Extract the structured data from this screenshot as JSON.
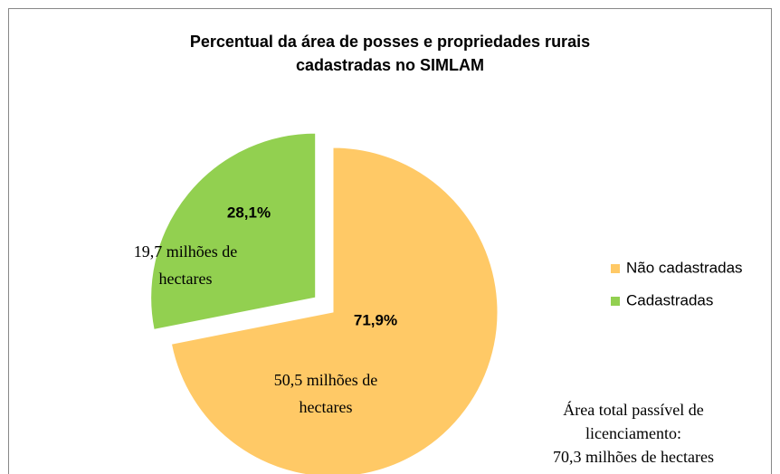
{
  "chart_data": {
    "type": "pie",
    "title": [
      "Percentual da área de posses e propriedades rurais",
      "cadastradas no SIMLAM"
    ],
    "categories": [
      "Não cadastradas",
      "Cadastradas"
    ],
    "values": [
      71.9,
      28.1
    ],
    "value_labels": [
      "71,9%",
      "28,1%"
    ],
    "colors": [
      "#FFC966",
      "#92D050"
    ],
    "explode": [
      false,
      true
    ],
    "legend": "right",
    "annotations": [
      [
        "50,5 milhões de",
        "hectares"
      ],
      [
        "19,7 milhões de",
        "hectares"
      ],
      [
        "Área total passível de",
        "licenciamento:",
        "70,3 milhões de hectares"
      ]
    ]
  }
}
